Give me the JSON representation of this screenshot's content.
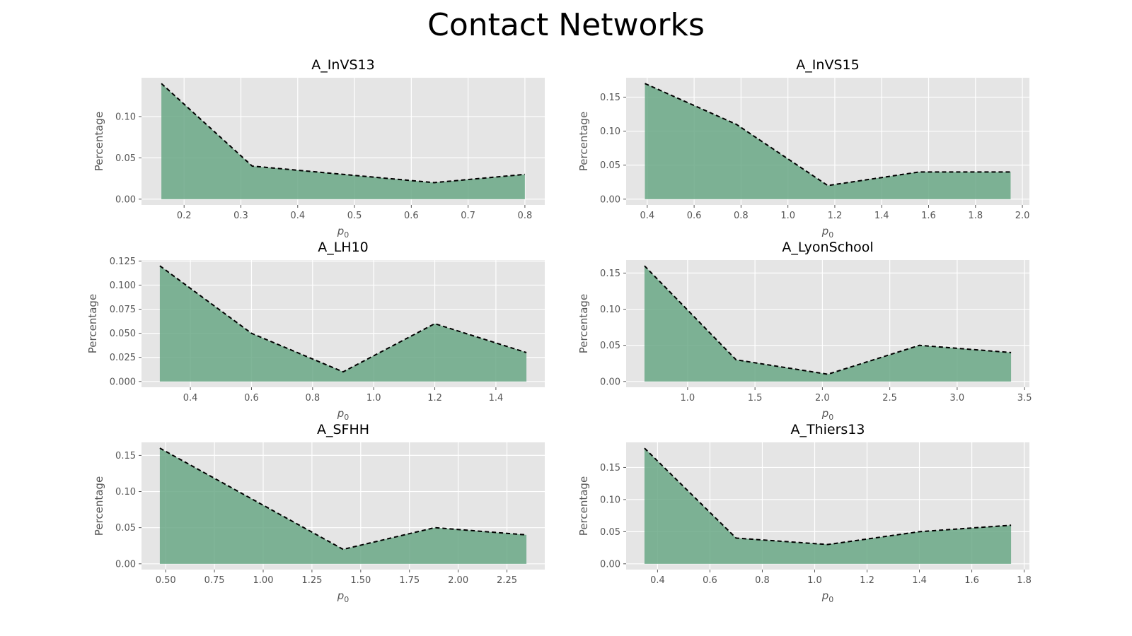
{
  "figure": {
    "title": "Contact Networks"
  },
  "style": {
    "fill_color": "#6aa886",
    "line_color": "#000000",
    "panel_bg": "#e5e5e5",
    "grid_color": "#ffffff",
    "tick_color": "#555555"
  },
  "chart_data": [
    {
      "type": "area",
      "title": "A_InVS13",
      "xlabel": "p0",
      "ylabel": "Percentage",
      "x": [
        0.16,
        0.32,
        0.48,
        0.64,
        0.8
      ],
      "y": [
        0.14,
        0.04,
        0.03,
        0.02,
        0.03
      ],
      "xlim": [
        0.125,
        0.835
      ],
      "ylim": [
        -0.007,
        0.147
      ],
      "xticks": [
        0.2,
        0.3,
        0.4,
        0.5,
        0.6,
        0.7,
        0.8
      ],
      "xtick_labels": [
        "0.2",
        "0.3",
        "0.4",
        "0.5",
        "0.6",
        "0.7",
        "0.8"
      ],
      "yticks": [
        0.0,
        0.05,
        0.1
      ],
      "ytick_labels": [
        "0.00",
        "0.05",
        "0.10"
      ],
      "grid": true
    },
    {
      "type": "area",
      "title": "A_InVS15",
      "xlabel": "p0",
      "ylabel": "Percentage",
      "x": [
        0.39,
        0.78,
        1.17,
        1.56,
        1.95
      ],
      "y": [
        0.17,
        0.11,
        0.02,
        0.04,
        0.04
      ],
      "xlim": [
        0.31,
        2.03
      ],
      "ylim": [
        -0.0085,
        0.1785
      ],
      "xticks": [
        0.4,
        0.6,
        0.8,
        1.0,
        1.2,
        1.4,
        1.6,
        1.8,
        2.0
      ],
      "xtick_labels": [
        "0.4",
        "0.6",
        "0.8",
        "1.0",
        "1.2",
        "1.4",
        "1.6",
        "1.8",
        "2.0"
      ],
      "yticks": [
        0.0,
        0.05,
        0.1,
        0.15
      ],
      "ytick_labels": [
        "0.00",
        "0.05",
        "0.10",
        "0.15"
      ],
      "grid": true
    },
    {
      "type": "area",
      "title": "A_LH10",
      "xlabel": "p0",
      "ylabel": "Percentage",
      "x": [
        0.3,
        0.6,
        0.9,
        1.2,
        1.5
      ],
      "y": [
        0.12,
        0.05,
        0.01,
        0.06,
        0.03
      ],
      "xlim": [
        0.24,
        1.56
      ],
      "ylim": [
        -0.006,
        0.126
      ],
      "xticks": [
        0.4,
        0.6,
        0.8,
        1.0,
        1.2,
        1.4
      ],
      "xtick_labels": [
        "0.4",
        "0.6",
        "0.8",
        "1.0",
        "1.2",
        "1.4"
      ],
      "yticks": [
        0.0,
        0.025,
        0.05,
        0.075,
        0.1,
        0.125
      ],
      "ytick_labels": [
        "0.000",
        "0.025",
        "0.050",
        "0.075",
        "0.100",
        "0.125"
      ],
      "grid": true
    },
    {
      "type": "area",
      "title": "A_LyonSchool",
      "xlabel": "p0",
      "ylabel": "Percentage",
      "x": [
        0.68,
        1.36,
        2.04,
        2.72,
        3.4
      ],
      "y": [
        0.16,
        0.03,
        0.01,
        0.05,
        0.04
      ],
      "xlim": [
        0.544,
        3.536
      ],
      "ylim": [
        -0.008,
        0.168
      ],
      "xticks": [
        1.0,
        1.5,
        2.0,
        2.5,
        3.0,
        3.5
      ],
      "xtick_labels": [
        "1.0",
        "1.5",
        "2.0",
        "2.5",
        "3.0",
        "3.5"
      ],
      "yticks": [
        0.0,
        0.05,
        0.1,
        0.15
      ],
      "ytick_labels": [
        "0.00",
        "0.05",
        "0.10",
        "0.15"
      ],
      "grid": true
    },
    {
      "type": "area",
      "title": "A_SFHH",
      "xlabel": "p0",
      "ylabel": "Percentage",
      "x": [
        0.47,
        0.94,
        1.41,
        1.88,
        2.35
      ],
      "y": [
        0.16,
        0.09,
        0.02,
        0.05,
        0.04
      ],
      "xlim": [
        0.376,
        2.444
      ],
      "ylim": [
        -0.008,
        0.168
      ],
      "xticks": [
        0.5,
        0.75,
        1.0,
        1.25,
        1.5,
        1.75,
        2.0,
        2.25
      ],
      "xtick_labels": [
        "0.50",
        "0.75",
        "1.00",
        "1.25",
        "1.50",
        "1.75",
        "2.00",
        "2.25"
      ],
      "yticks": [
        0.0,
        0.05,
        0.1,
        0.15
      ],
      "ytick_labels": [
        "0.00",
        "0.05",
        "0.10",
        "0.15"
      ],
      "grid": true
    },
    {
      "type": "area",
      "title": "A_Thiers13",
      "xlabel": "p0",
      "ylabel": "Percentage",
      "x": [
        0.35,
        0.7,
        1.05,
        1.4,
        1.75
      ],
      "y": [
        0.18,
        0.04,
        0.03,
        0.05,
        0.06
      ],
      "xlim": [
        0.28,
        1.82
      ],
      "ylim": [
        -0.009,
        0.189
      ],
      "xticks": [
        0.4,
        0.6,
        0.8,
        1.0,
        1.2,
        1.4,
        1.6,
        1.8
      ],
      "xtick_labels": [
        "0.4",
        "0.6",
        "0.8",
        "1.0",
        "1.2",
        "1.4",
        "1.6",
        "1.8"
      ],
      "yticks": [
        0.0,
        0.05,
        0.1,
        0.15
      ],
      "ytick_labels": [
        "0.00",
        "0.05",
        "0.10",
        "0.15"
      ],
      "grid": true
    }
  ]
}
